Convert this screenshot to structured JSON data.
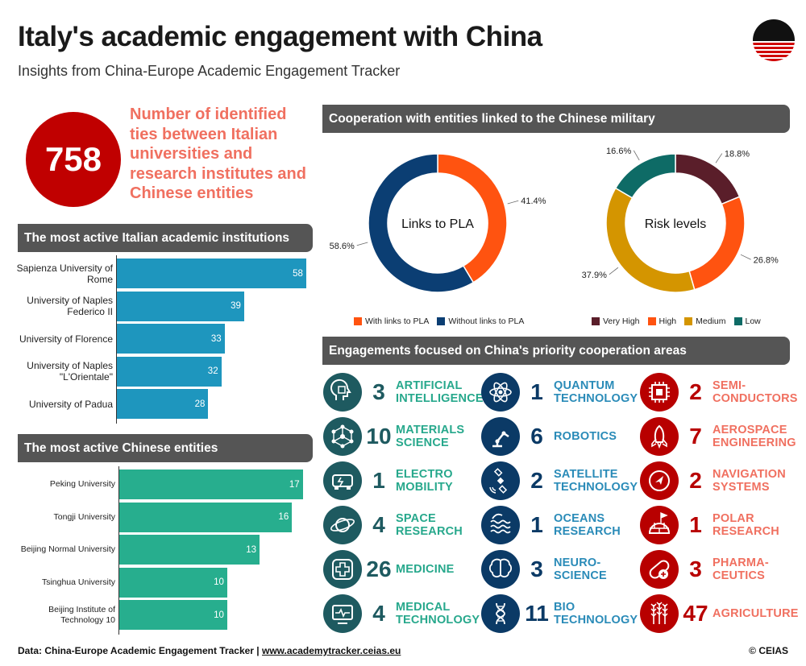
{
  "header": {
    "title": "Italy's academic engagement with China",
    "subtitle": "Insights from China-Europe Academic Engagement Tracker"
  },
  "kpi": {
    "value": "758",
    "text": "Number of identified ties between Italian universities and research institutes and Chinese entities"
  },
  "sections": {
    "italian": "The most active Italian academic institutions",
    "chinese": "The most active Chinese entities",
    "military": "Cooperation with entities linked to the Chinese military",
    "priority": "Engagements focused on China's priority cooperation areas"
  },
  "colors": {
    "italian_bar": "#1e96be",
    "chinese_bar": "#27ae8e",
    "pla_with": "#ff5310",
    "pla_without": "#0b3e73",
    "very_high": "#5a1e2a",
    "high": "#ff5310",
    "medium": "#d49500",
    "low": "#0e6b66"
  },
  "chart_data": [
    {
      "type": "bar",
      "orientation": "horizontal",
      "title": "The most active Italian academic institutions",
      "categories": [
        "Sapienza University of Rome",
        "University of Naples Federico II",
        "University of Florence",
        "University of Naples \"L'Orientale\"",
        "University of Padua"
      ],
      "values": [
        58,
        39,
        33,
        32,
        28
      ],
      "xlim": [
        0,
        60
      ]
    },
    {
      "type": "bar",
      "orientation": "horizontal",
      "title": "The most active Chinese entities",
      "categories": [
        "Peking University",
        "Tongji University",
        "Beijing Normal University",
        "Tsinghua University",
        "Beijing Institute of Technology 10"
      ],
      "values": [
        17,
        16,
        13,
        10,
        10
      ],
      "xlim": [
        0,
        18
      ]
    },
    {
      "type": "pie",
      "donut": true,
      "center_label": "Links to PLA",
      "categories": [
        "With links to PLA",
        "Without links to PLA"
      ],
      "values": [
        41.4,
        58.6
      ],
      "value_labels": [
        "41.4%",
        "58.6%"
      ],
      "legend": "bottom"
    },
    {
      "type": "pie",
      "donut": true,
      "center_label": "Risk levels",
      "categories": [
        "Very High",
        "High",
        "Medium",
        "Low"
      ],
      "values": [
        18.8,
        26.8,
        37.9,
        16.6
      ],
      "value_labels": [
        "18.8%",
        "26.8%",
        "37.9%",
        "16.6%"
      ],
      "legend": "bottom"
    }
  ],
  "priority_areas": [
    {
      "num": "3",
      "label": "ARTIFICIAL INTELLIGENCE",
      "icon": "ai-head-icon",
      "color": "teal"
    },
    {
      "num": "1",
      "label": "QUANTUM TECHNOLOGY",
      "icon": "atom-icon",
      "color": "blue"
    },
    {
      "num": "2",
      "label": "SEMI-CONDUCTORS",
      "icon": "chip-icon",
      "color": "red"
    },
    {
      "num": "10",
      "label": "MATERIALS SCIENCE",
      "icon": "molecule-icon",
      "color": "teal"
    },
    {
      "num": "6",
      "label": "ROBOTICS",
      "icon": "robot-arm-icon",
      "color": "blue"
    },
    {
      "num": "7",
      "label": "AEROSPACE ENGINEERING",
      "icon": "rocket-icon",
      "color": "red"
    },
    {
      "num": "1",
      "label": "ELECTRO MOBILITY",
      "icon": "electric-car-icon",
      "color": "teal"
    },
    {
      "num": "2",
      "label": "SATELLITE TECHNOLOGY",
      "icon": "satellite-icon",
      "color": "blue"
    },
    {
      "num": "2",
      "label": "NAVIGATION SYSTEMS",
      "icon": "navigation-icon",
      "color": "red"
    },
    {
      "num": "4",
      "label": "SPACE RESEARCH",
      "icon": "planet-icon",
      "color": "teal"
    },
    {
      "num": "1",
      "label": "OCEANS RESEARCH",
      "icon": "waves-icon",
      "color": "blue"
    },
    {
      "num": "1",
      "label": "POLAR RESEARCH",
      "icon": "igloo-flag-icon",
      "color": "red"
    },
    {
      "num": "26",
      "label": "MEDICINE",
      "icon": "medical-cross-icon",
      "color": "teal"
    },
    {
      "num": "3",
      "label": "NEURO-SCIENCE",
      "icon": "brain-icon",
      "color": "blue"
    },
    {
      "num": "3",
      "label": "PHARMA-CEUTICS",
      "icon": "pill-icon",
      "color": "red"
    },
    {
      "num": "4",
      "label": "MEDICAL TECHNOLOGY",
      "icon": "heart-monitor-icon",
      "color": "teal"
    },
    {
      "num": "11",
      "label": "BIO TECHNOLOGY",
      "icon": "dna-icon",
      "color": "blue"
    },
    {
      "num": "47",
      "label": "AGRICULTURE",
      "icon": "wheat-icon",
      "color": "red"
    }
  ],
  "footer": {
    "source_prefix": "Data: China-Europe Academic Engagement Tracker | ",
    "source_url": "www.academytracker.ceias.eu",
    "copyright": "© CEIAS"
  }
}
